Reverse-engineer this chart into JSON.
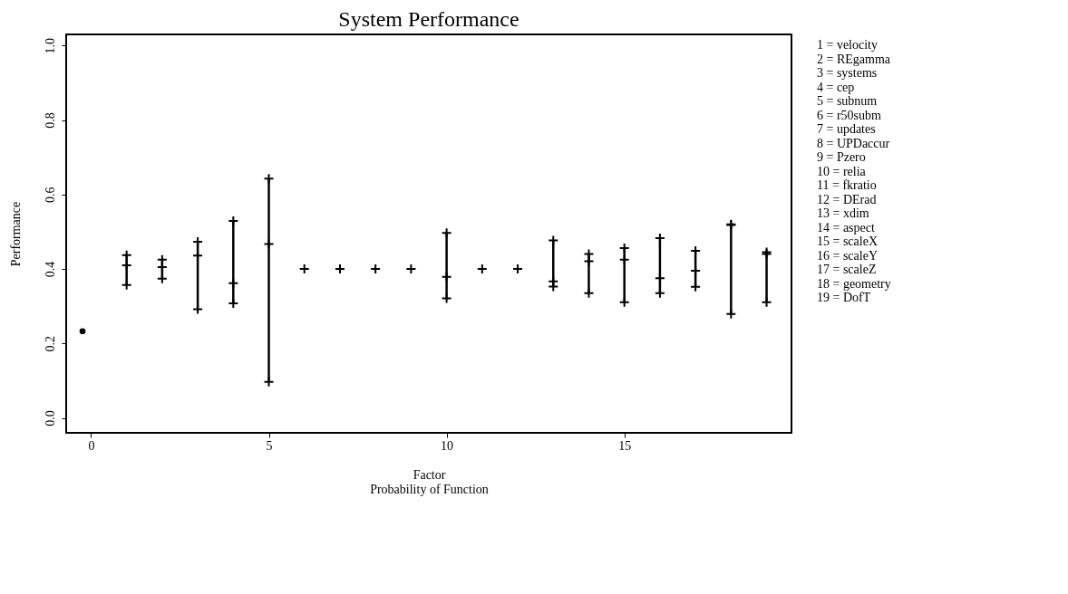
{
  "chart_data": {
    "type": "scatter",
    "title": "System Performance",
    "xlabel": "Factor\nProbability of Function",
    "ylabel": "Performance",
    "xlim": [
      -0.7,
      19.7
    ],
    "ylim": [
      -0.04,
      1.03
    ],
    "xticks": [
      0,
      5,
      10,
      15
    ],
    "yticks": [
      {
        "value": 0,
        "label": "0.0"
      },
      0.2,
      0.4,
      0.6,
      0.8,
      {
        "value": 1,
        "label": "1.0"
      }
    ],
    "grid": false,
    "marker": "cross",
    "series": [
      {
        "marker": "circle",
        "color": "#000000",
        "x": [
          -0.24
        ],
        "values": [
          0.233
        ]
      },
      {
        "color": "#000000",
        "x": [
          1,
          2,
          3,
          4,
          5,
          6,
          7,
          8,
          9,
          10,
          11,
          12,
          13,
          14,
          15,
          16,
          17,
          18,
          19
        ],
        "values": [
          0.41,
          0.405,
          0.436,
          0.362,
          0.467,
          0.4,
          0.4,
          0.4,
          0.4,
          0.379,
          0.4,
          0.4,
          0.367,
          0.421,
          0.425,
          0.375,
          0.395,
          0.52,
          0.44
        ],
        "errors": [
          [
            0.357,
            0.437
          ],
          [
            0.374,
            0.425
          ],
          [
            0.292,
            0.473
          ],
          [
            0.308,
            0.529
          ],
          [
            0.097,
            0.643
          ],
          null,
          null,
          null,
          null,
          [
            0.321,
            0.497
          ],
          null,
          null,
          [
            0.353,
            0.477
          ],
          [
            0.335,
            0.44
          ],
          [
            0.311,
            0.456
          ],
          [
            0.335,
            0.483
          ],
          [
            0.352,
            0.449
          ],
          [
            0.279,
            0.518
          ],
          [
            0.311,
            0.445
          ]
        ]
      }
    ],
    "annotations": [
      "1 = velocity",
      "2 = REgamma",
      "3 = systems",
      "4 = cep",
      "5 = subnum",
      "6 = r50subm",
      "7 = updates",
      "8 = UPDaccur",
      "9 = Pzero",
      "10 = relia",
      "11 = fkratio",
      "12 = DErad",
      "13 = xdim",
      "14 = aspect",
      "15 = scaleX",
      "16 = scaleY",
      "17 = scaleZ",
      "18 = geometry",
      "19 = DofT"
    ]
  }
}
